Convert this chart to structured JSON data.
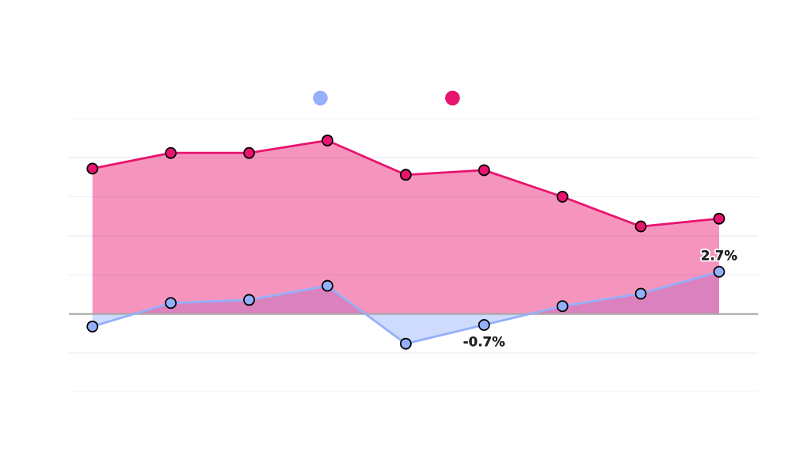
{
  "chart_data": {
    "type": "area",
    "categories": [
      null,
      null,
      null,
      null,
      null,
      null,
      null,
      null,
      null
    ],
    "series": [
      {
        "color": "#94b0fa",
        "values": [
          -0.8,
          0.7,
          0.9,
          1.8,
          -1.9,
          -0.7,
          0.5,
          1.3,
          2.7
        ],
        "value_labels": [
          null,
          null,
          null,
          null,
          null,
          "-0.7%",
          null,
          null,
          "2.7%"
        ]
      },
      {
        "color": "#e8146f",
        "values": [
          9.3,
          10.3,
          10.3,
          11.1,
          8.9,
          9.2,
          7.5,
          5.6,
          6.1
        ]
      }
    ],
    "ylim": [
      -5,
      12.5
    ],
    "yticks": [
      {
        "value": -5,
        "label": null
      },
      {
        "value": -2.5,
        "label": null
      },
      {
        "value": 0,
        "label": null
      },
      {
        "value": 2.5,
        "label": null
      },
      {
        "value": 5,
        "label": null
      },
      {
        "value": 7.5,
        "label": null
      },
      {
        "value": 10,
        "label": null
      },
      {
        "value": 12.5,
        "label": null
      }
    ],
    "ref_lines": [
      {
        "axis": "y",
        "value": 0,
        "color": "#aaaaaa"
      }
    ],
    "grid": "y",
    "marker": "circle"
  }
}
